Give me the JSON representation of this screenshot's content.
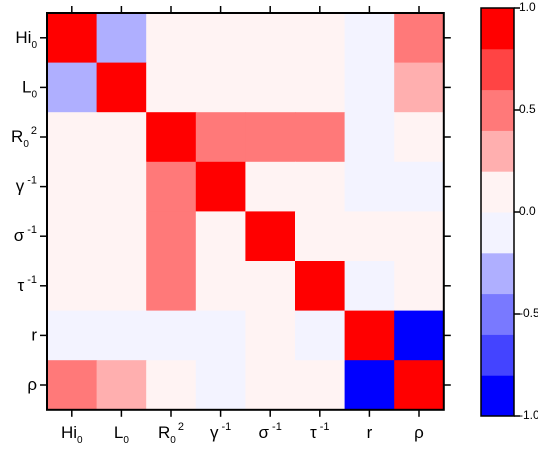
{
  "chart_data": {
    "type": "heatmap",
    "row_labels": [
      {
        "main": "Hi",
        "sub": "0",
        "sup": ""
      },
      {
        "main": "L",
        "sub": "0",
        "sup": ""
      },
      {
        "main": "R",
        "sub": "0",
        "sup": "2"
      },
      {
        "main": "γ",
        "sub": "",
        "sup": "-1"
      },
      {
        "main": "σ",
        "sub": "",
        "sup": "-1"
      },
      {
        "main": "τ",
        "sub": "",
        "sup": "-1"
      },
      {
        "main": "r",
        "sub": "",
        "sup": ""
      },
      {
        "main": "ρ",
        "sub": "",
        "sup": ""
      }
    ],
    "col_labels": [
      {
        "main": "Hi",
        "sub": "0",
        "sup": ""
      },
      {
        "main": "L",
        "sub": "0",
        "sup": ""
      },
      {
        "main": "R",
        "sub": "0",
        "sup": "2"
      },
      {
        "main": "γ",
        "sub": "",
        "sup": "-1"
      },
      {
        "main": "σ",
        "sub": "",
        "sup": "-1"
      },
      {
        "main": "τ",
        "sub": "",
        "sup": "-1"
      },
      {
        "main": "r",
        "sub": "",
        "sup": ""
      },
      {
        "main": "ρ",
        "sub": "",
        "sup": ""
      }
    ],
    "values": [
      [
        1.0,
        -0.4,
        0.0,
        0.0,
        0.0,
        0.0,
        -0.2,
        0.4
      ],
      [
        -0.4,
        1.0,
        0.0,
        0.0,
        0.0,
        0.0,
        -0.2,
        0.2
      ],
      [
        0.0,
        0.0,
        1.0,
        0.4,
        0.4,
        0.4,
        -0.05,
        0.05
      ],
      [
        0.0,
        0.0,
        0.4,
        1.0,
        0.0,
        0.0,
        -0.05,
        -0.05
      ],
      [
        0.0,
        0.0,
        0.4,
        0.0,
        1.0,
        0.0,
        0.0,
        0.0
      ],
      [
        0.0,
        0.0,
        0.4,
        0.0,
        0.0,
        1.0,
        -0.05,
        0.0
      ],
      [
        -0.2,
        -0.2,
        -0.05,
        -0.05,
        0.0,
        -0.05,
        1.0,
        -1.0
      ],
      [
        0.4,
        0.2,
        0.05,
        -0.05,
        0.0,
        0.0,
        -1.0,
        1.0
      ]
    ],
    "colorbar": {
      "range": [
        -1.0,
        1.0
      ],
      "bins": 10,
      "tick_values": [
        1.0,
        0.5,
        0.0,
        -0.5,
        -1.0
      ],
      "tick_labels": [
        "1.0",
        "0.5",
        "0.0",
        "-0.5",
        "-1.0"
      ]
    },
    "colors": {
      "negative_extreme": "#0000ff",
      "neutral": "#ffffff",
      "positive_extreme": "#ff0000"
    },
    "title": "",
    "xlabel": "",
    "ylabel": ""
  }
}
